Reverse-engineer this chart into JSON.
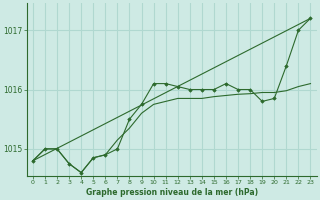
{
  "title": "Graphe pression niveau de la mer (hPa)",
  "bg_color": "#ceeae4",
  "grid_color": "#b0d8d0",
  "line_color": "#2d6a2d",
  "marker_color": "#2d6a2d",
  "xlim": [
    -0.5,
    23.5
  ],
  "ylim": [
    1014.55,
    1017.45
  ],
  "yticks": [
    1015,
    1016,
    1017
  ],
  "xticks": [
    0,
    1,
    2,
    3,
    4,
    5,
    6,
    7,
    8,
    9,
    10,
    11,
    12,
    13,
    14,
    15,
    16,
    17,
    18,
    19,
    20,
    21,
    22,
    23
  ],
  "line1_x": [
    0,
    1,
    2,
    3,
    4,
    5,
    6,
    7,
    8,
    9,
    10,
    11,
    12,
    13,
    14,
    15,
    16,
    17,
    18,
    19,
    20,
    21,
    22,
    23
  ],
  "line1_y": [
    1014.8,
    1015.0,
    1015.0,
    1014.75,
    1014.6,
    1014.85,
    1014.9,
    1015.0,
    1015.5,
    1015.75,
    1016.1,
    1016.1,
    1016.05,
    1016.0,
    1016.0,
    1016.0,
    1016.1,
    1016.0,
    1016.0,
    1015.8,
    1015.85,
    1016.4,
    1017.0,
    1017.2
  ],
  "line2_x": [
    0,
    1,
    2,
    3,
    4,
    5,
    6,
    7,
    8,
    9,
    10,
    11,
    12,
    13,
    14,
    15,
    16,
    17,
    18,
    19,
    20,
    21,
    22,
    23
  ],
  "line2_y": [
    1014.8,
    1015.0,
    1015.0,
    1014.75,
    1014.6,
    1014.85,
    1014.9,
    1015.15,
    1015.35,
    1015.6,
    1015.75,
    1015.8,
    1015.85,
    1015.85,
    1015.85,
    1015.88,
    1015.9,
    1015.92,
    1015.93,
    1015.95,
    1015.95,
    1015.98,
    1016.05,
    1016.1
  ],
  "line3_x": [
    0,
    23
  ],
  "line3_y": [
    1014.8,
    1017.2
  ],
  "figsize": [
    3.2,
    2.0
  ],
  "dpi": 100
}
